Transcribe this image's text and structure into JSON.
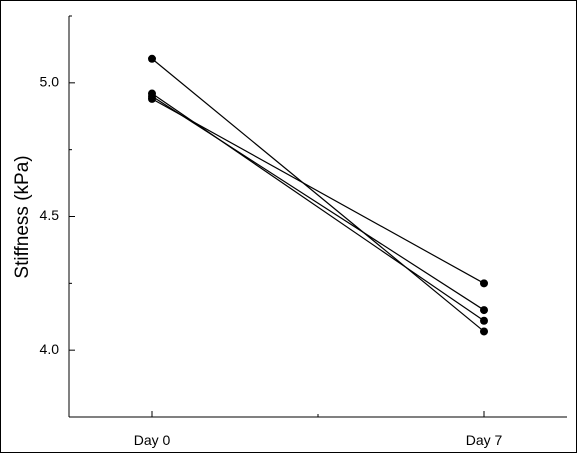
{
  "chart_data": {
    "type": "line",
    "title": "",
    "xlabel": "",
    "ylabel": "Stiffness (kPa)",
    "categories": [
      "Day 0",
      "Day 7"
    ],
    "ylim": [
      3.75,
      5.25
    ],
    "yticks": [
      "4.0",
      "4.5",
      "5.0"
    ],
    "grid": false,
    "legend": "none",
    "series": [
      {
        "values": [
          5.09,
          4.07
        ]
      },
      {
        "values": [
          4.96,
          4.11
        ]
      },
      {
        "values": [
          4.95,
          4.15
        ]
      },
      {
        "values": [
          4.94,
          4.25
        ]
      }
    ],
    "colors": {
      "line": "#000000",
      "marker": "#000000"
    }
  }
}
